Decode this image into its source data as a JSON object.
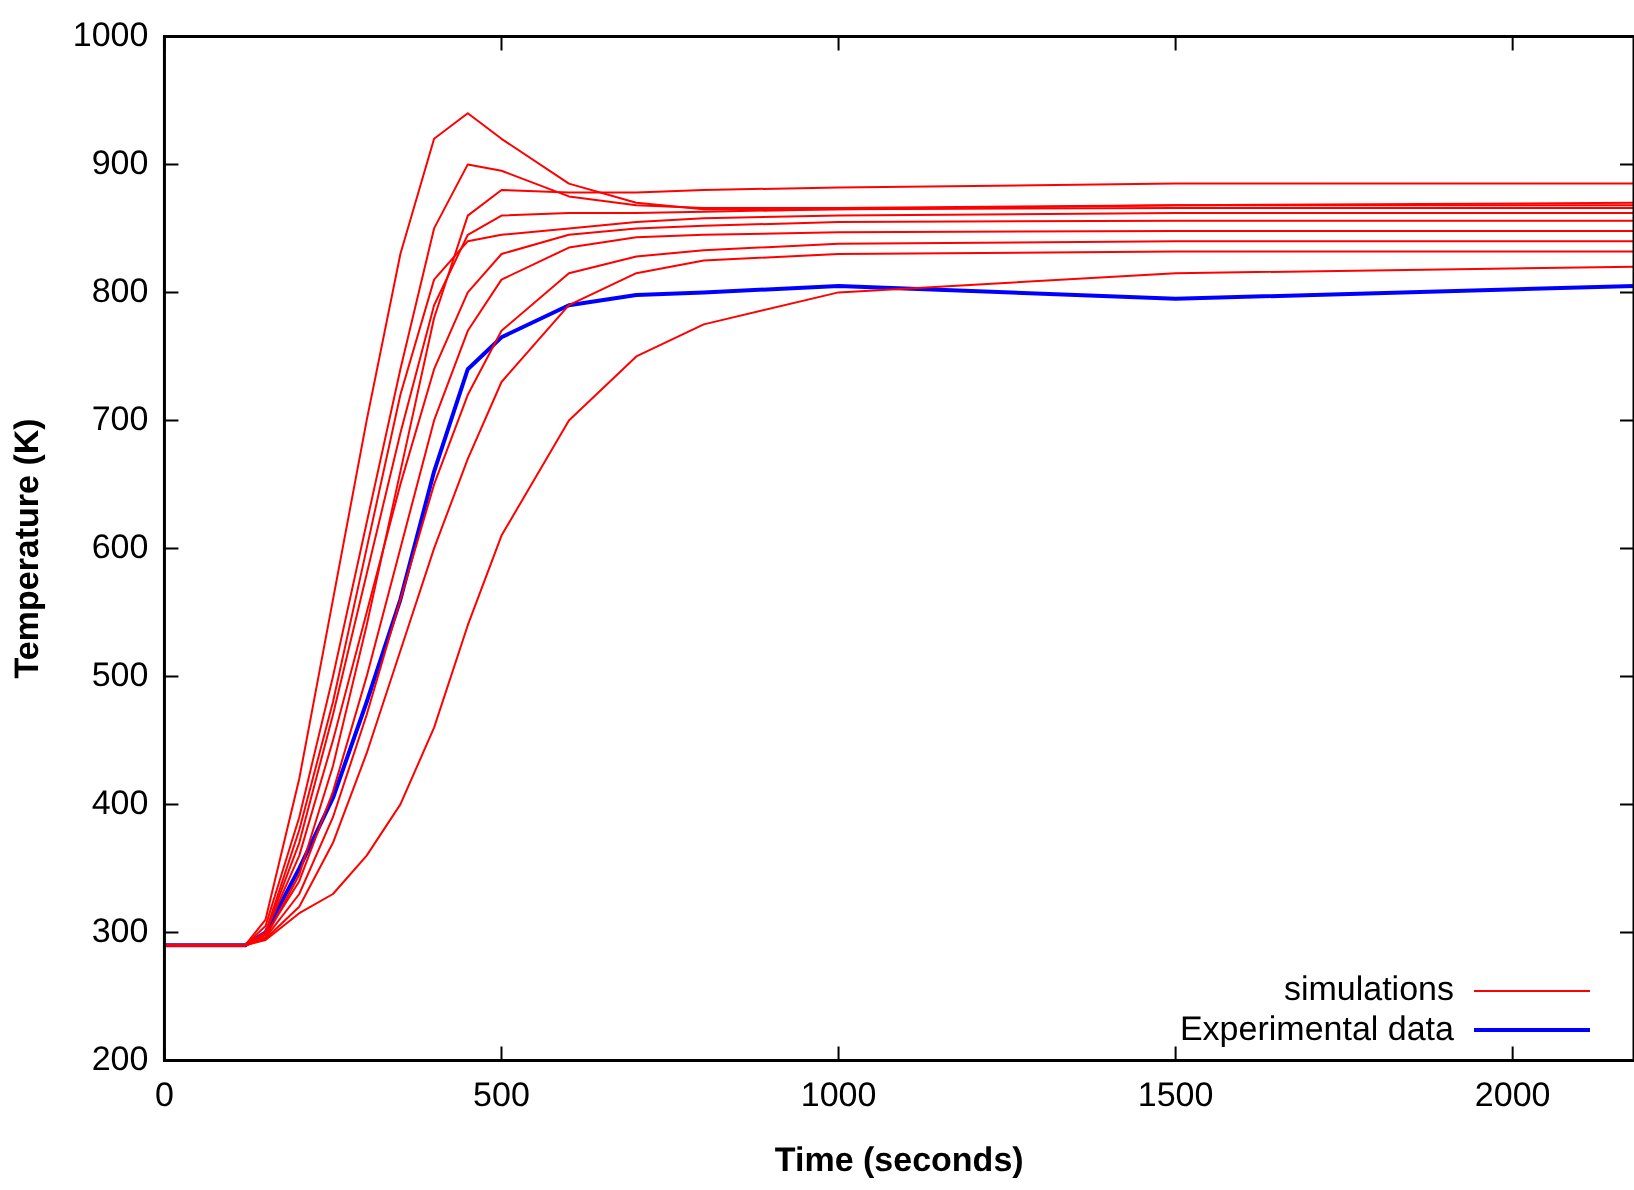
{
  "chart_data": {
    "type": "line",
    "xlabel": "Time (seconds)",
    "ylabel": "Temperature (K)",
    "x": [
      0,
      120,
      150,
      200,
      250,
      300,
      350,
      400,
      450,
      500,
      600,
      700,
      800,
      1000,
      1500,
      2180
    ],
    "xlim": [
      0,
      2180
    ],
    "xticks": [
      0,
      500,
      1000,
      1500,
      2000
    ],
    "ylim": [
      200,
      1000
    ],
    "yticks": [
      200,
      300,
      400,
      500,
      600,
      700,
      800,
      900,
      1000
    ],
    "grid": false,
    "legend": "bottom right",
    "marker": "none",
    "line_style": "solid",
    "series": [
      {
        "name": "simulations",
        "color": "#ff0000",
        "values": [
          290,
          290,
          310,
          420,
          560,
          700,
          830,
          920,
          940,
          920,
          885,
          870,
          865,
          865,
          868,
          870
        ]
      },
      {
        "color": "#ff0000",
        "values": [
          290,
          290,
          305,
          390,
          500,
          620,
          740,
          850,
          900,
          895,
          875,
          868,
          866,
          866,
          868,
          868
        ]
      },
      {
        "color": "#ff0000",
        "values": [
          290,
          290,
          300,
          370,
          470,
          580,
          690,
          790,
          845,
          860,
          862,
          862,
          863,
          865,
          866,
          866
        ]
      },
      {
        "color": "#ff0000",
        "values": [
          290,
          290,
          300,
          360,
          450,
          550,
          650,
          740,
          800,
          830,
          845,
          850,
          852,
          855,
          856,
          856
        ]
      },
      {
        "color": "#ff0000",
        "values": [
          290,
          290,
          298,
          340,
          410,
          500,
          600,
          700,
          770,
          810,
          835,
          843,
          845,
          847,
          848,
          848
        ]
      },
      {
        "color": "#ff0000",
        "values": [
          290,
          290,
          296,
          330,
          390,
          470,
          560,
          650,
          720,
          770,
          815,
          828,
          833,
          838,
          840,
          840
        ]
      },
      {
        "color": "#ff0000",
        "values": [
          290,
          290,
          295,
          320,
          370,
          440,
          520,
          600,
          670,
          730,
          790,
          815,
          825,
          830,
          832,
          832
        ]
      },
      {
        "color": "#ff0000",
        "values": [
          290,
          290,
          294,
          315,
          330,
          360,
          400,
          460,
          540,
          610,
          700,
          750,
          775,
          800,
          815,
          820
        ]
      },
      {
        "color": "#ff0000",
        "values": [
          290,
          290,
          296,
          345,
          430,
          540,
          660,
          780,
          860,
          880,
          878,
          878,
          880,
          882,
          885,
          885
        ]
      },
      {
        "color": "#ff0000",
        "values": [
          290,
          290,
          300,
          380,
          480,
          600,
          720,
          810,
          840,
          845,
          850,
          855,
          858,
          860,
          862,
          862
        ]
      },
      {
        "name": "Experimental data",
        "color": "#0000ff",
        "values": [
          290,
          290,
          300,
          350,
          405,
          480,
          560,
          660,
          740,
          765,
          790,
          798,
          800,
          805,
          795,
          805
        ]
      }
    ]
  }
}
